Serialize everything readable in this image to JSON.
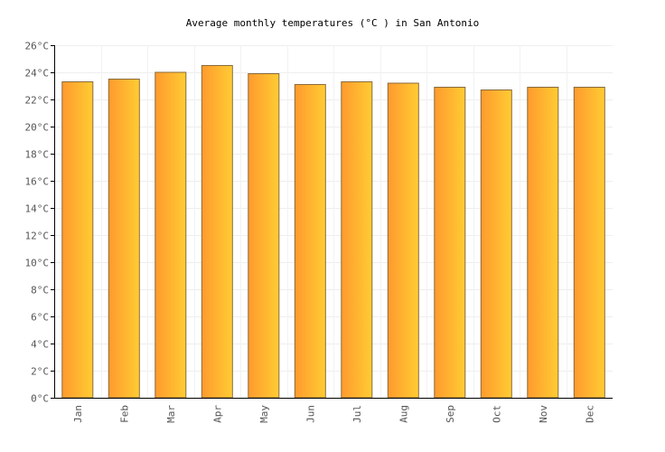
{
  "chart_data": {
    "type": "bar",
    "title": "Average monthly temperatures (°C ) in San Antonio",
    "xlabel": "",
    "ylabel": "",
    "unit": "°C",
    "categories": [
      "Jan",
      "Feb",
      "Mar",
      "Apr",
      "May",
      "Jun",
      "Jul",
      "Aug",
      "Sep",
      "Oct",
      "Nov",
      "Dec"
    ],
    "values": [
      23.3,
      23.5,
      24.0,
      24.5,
      23.9,
      23.1,
      23.3,
      23.2,
      22.9,
      22.7,
      22.9,
      22.9
    ],
    "ylim": [
      0,
      26
    ],
    "ytick_step": 2,
    "grid": true,
    "legend": "none",
    "colors": {
      "bar_left": "#ff9a2e",
      "bar_right": "#ffcc33",
      "bar_border": "#8a6a3a",
      "grid": "#eeeeee",
      "axis": "#000000"
    }
  }
}
